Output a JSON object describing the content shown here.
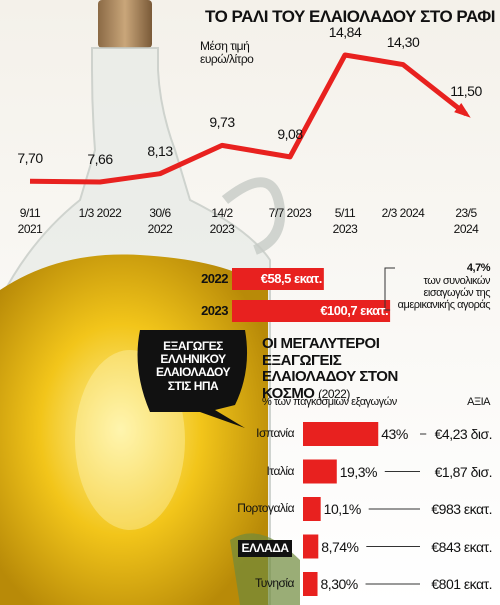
{
  "chart_data": [
    {
      "type": "line",
      "title": "ΤΟ ΡΑΛΙ ΤΟΥ ΕΛΑΙΟΛΑΔΟΥ ΣΤΟ ΡΑΦΙ",
      "subtitle": "Μέση τιμή ευρώ/λίτρο",
      "categories": [
        "9/11 2021",
        "1/3 2022",
        "30/6 2022",
        "14/2 2023",
        "7/7 2023",
        "5/11 2023",
        "2/3 2024",
        "23/5 2024"
      ],
      "values": [
        7.7,
        7.66,
        8.13,
        9.73,
        9.08,
        14.84,
        14.3,
        11.5
      ],
      "value_labels": [
        "7,70",
        "7,66",
        "8,13",
        "9,73",
        "9,08",
        "14,84",
        "14,30",
        "11,50"
      ],
      "color": "#e8211f"
    },
    {
      "type": "bar",
      "title": "ΕΞΑΓΩΓΕΣ ΕΛΛΗΝΙΚΟΥ ΕΛΑΙΟΛΑΔΟΥ ΣΤΙΣ ΗΠΑ",
      "categories": [
        "2022",
        "2023"
      ],
      "values": [
        58.5,
        100.7
      ],
      "value_labels": [
        "€58,5 εκατ.",
        "€100,7 εκατ."
      ],
      "annotation": "4,7%",
      "annotation_text": "των συνολικών εισαγωγών της αμερικανικής αγοράς",
      "color": "#e8211f"
    },
    {
      "type": "hbar",
      "title": "ΟΙ ΜΕΓΑΛΥΤΕΡΟΙ ΕΞΑΓΩΓΕΙΣ ΕΛΑΙΟΛΑΔΟΥ ΣΤΟΝ ΚΟΣΜΟ",
      "title_note": "(2022)",
      "value_axis_label": "% των παγκόσμιων εξαγωγών",
      "amount_label": "ΑΞΙΑ",
      "categories": [
        "Ισπανία",
        "Ιταλία",
        "Πορτογαλία",
        "ΕΛΛΑΔΑ",
        "Τυνησία"
      ],
      "values": [
        43,
        19.3,
        10.1,
        8.74,
        8.3
      ],
      "value_labels": [
        "43%",
        "19,3%",
        "10,1%",
        "8,74%",
        "8,30%"
      ],
      "amounts": [
        "€4,23 δισ.",
        "€1,87 δισ.",
        "€983 εκατ.",
        "€843 εκατ.",
        "€801 εκατ."
      ],
      "highlight": "ΕΛΛΑΔΑ",
      "color": "#e8211f"
    }
  ]
}
